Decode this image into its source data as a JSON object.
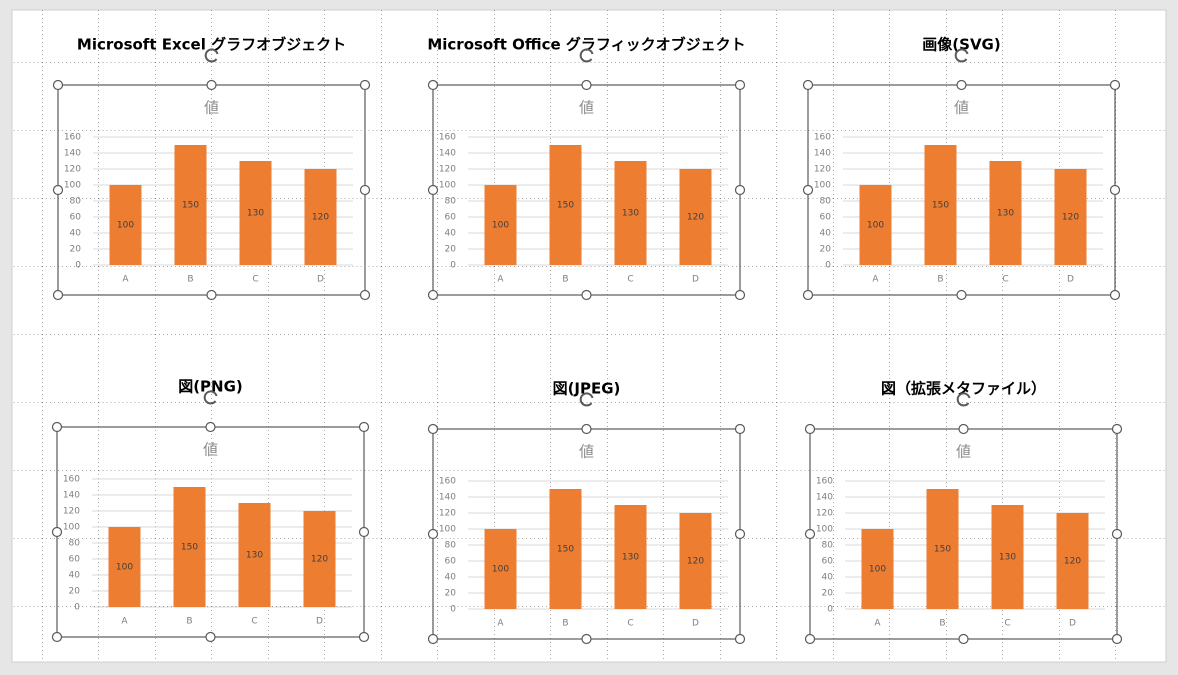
{
  "chart_data": [
    {
      "type": "bar",
      "caption": "Microsoft Excel グラフオブジェクト",
      "title": "値",
      "categories": [
        "A",
        "B",
        "C",
        "D"
      ],
      "values": [
        100,
        150,
        130,
        120
      ],
      "color": "#ed7d31",
      "ylim": [
        0,
        160
      ],
      "yticks": [
        0,
        20,
        40,
        60,
        80,
        100,
        120,
        140,
        160
      ],
      "grid": true
    },
    {
      "type": "bar",
      "caption": "Microsoft Office グラフィックオブジェクト",
      "title": "値",
      "categories": [
        "A",
        "B",
        "C",
        "D"
      ],
      "values": [
        100,
        150,
        130,
        120
      ],
      "color": "#ed7d31",
      "ylim": [
        0,
        160
      ],
      "yticks": [
        0,
        20,
        40,
        60,
        80,
        100,
        120,
        140,
        160
      ],
      "grid": true
    },
    {
      "type": "bar",
      "caption": "画像(SVG)",
      "title": "値",
      "categories": [
        "A",
        "B",
        "C",
        "D"
      ],
      "values": [
        100,
        150,
        130,
        120
      ],
      "color": "#ed7d31",
      "ylim": [
        0,
        160
      ],
      "yticks": [
        0,
        20,
        40,
        60,
        80,
        100,
        120,
        140,
        160
      ],
      "grid": true
    },
    {
      "type": "bar",
      "caption": "図(PNG)",
      "title": "値",
      "categories": [
        "A",
        "B",
        "C",
        "D"
      ],
      "values": [
        100,
        150,
        130,
        120
      ],
      "color": "#ed7d31",
      "ylim": [
        0,
        160
      ],
      "yticks": [
        0,
        20,
        40,
        60,
        80,
        100,
        120,
        140,
        160
      ],
      "grid": true
    },
    {
      "type": "bar",
      "caption": "図(JPEG)",
      "title": "値",
      "categories": [
        "A",
        "B",
        "C",
        "D"
      ],
      "values": [
        100,
        150,
        130,
        120
      ],
      "color": "#ed7d31",
      "ylim": [
        0,
        160
      ],
      "yticks": [
        0,
        20,
        40,
        60,
        80,
        100,
        120,
        140,
        160
      ],
      "grid": true
    },
    {
      "type": "bar",
      "caption": "図（拡張メタファイル）",
      "title": "値",
      "categories": [
        "A",
        "B",
        "C",
        "D"
      ],
      "values": [
        100,
        150,
        130,
        120
      ],
      "color": "#ed7d31",
      "ylim": [
        0,
        160
      ],
      "yticks": [
        0,
        20,
        40,
        60,
        80,
        100,
        120,
        140,
        160
      ],
      "grid": true
    }
  ]
}
